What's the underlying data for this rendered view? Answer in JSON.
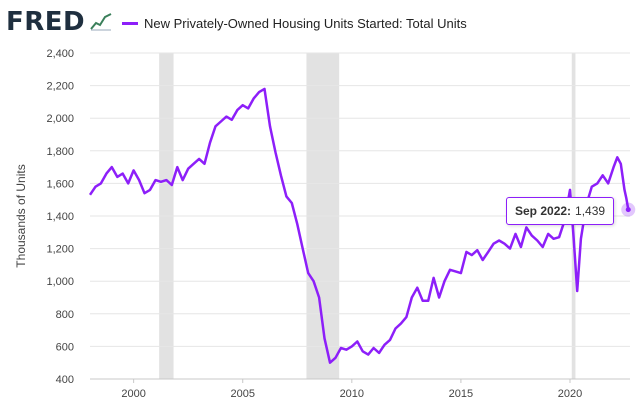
{
  "header": {
    "logo_text": "FRED",
    "logo_icon": "line-chart-icon",
    "legend_label": "New Privately-Owned Housing Units Started: Total Units"
  },
  "tooltip": {
    "date": "Sep 2022:",
    "value": "1,439"
  },
  "colors": {
    "series": "#8d1ff9",
    "recession": "#e2e2e2",
    "grid": "#e6e6e6",
    "logo": "#1f2f3f"
  },
  "chart_data": {
    "type": "line",
    "title": "",
    "xlabel": "",
    "ylabel": "Thousands of Units",
    "xlim": [
      1998.0,
      2022.75
    ],
    "ylim": [
      400,
      2400
    ],
    "yticks": [
      400,
      600,
      800,
      1000,
      1200,
      1400,
      1600,
      1800,
      2000,
      2200,
      2400
    ],
    "ytick_labels": [
      "400",
      "600",
      "800",
      "1,000",
      "1,200",
      "1,400",
      "1,600",
      "1,800",
      "2,000",
      "2,200",
      "2,400"
    ],
    "xticks": [
      2000,
      2005,
      2010,
      2015,
      2020
    ],
    "xtick_labels": [
      "2000",
      "2005",
      "2010",
      "2015",
      "2020"
    ],
    "grid": true,
    "legend": "top-left",
    "recessions": [
      [
        2001.17,
        2001.83
      ],
      [
        2007.92,
        2009.42
      ],
      [
        2020.08,
        2020.25
      ]
    ],
    "series": [
      {
        "name": "New Privately-Owned Housing Units Started: Total Units",
        "x": [
          1998.0,
          1998.25,
          1998.5,
          1998.75,
          1999.0,
          1999.25,
          1999.5,
          1999.75,
          2000.0,
          2000.25,
          2000.5,
          2000.75,
          2001.0,
          2001.25,
          2001.5,
          2001.75,
          2002.0,
          2002.25,
          2002.5,
          2002.75,
          2003.0,
          2003.25,
          2003.5,
          2003.75,
          2004.0,
          2004.25,
          2004.5,
          2004.75,
          2005.0,
          2005.25,
          2005.5,
          2005.75,
          2006.0,
          2006.25,
          2006.5,
          2006.75,
          2007.0,
          2007.25,
          2007.5,
          2007.75,
          2008.0,
          2008.25,
          2008.5,
          2008.75,
          2009.0,
          2009.25,
          2009.5,
          2009.75,
          2010.0,
          2010.25,
          2010.5,
          2010.75,
          2011.0,
          2011.25,
          2011.5,
          2011.75,
          2012.0,
          2012.25,
          2012.5,
          2012.75,
          2013.0,
          2013.25,
          2013.5,
          2013.75,
          2014.0,
          2014.25,
          2014.5,
          2014.75,
          2015.0,
          2015.25,
          2015.5,
          2015.75,
          2016.0,
          2016.25,
          2016.5,
          2016.75,
          2017.0,
          2017.25,
          2017.5,
          2017.75,
          2018.0,
          2018.25,
          2018.5,
          2018.75,
          2019.0,
          2019.25,
          2019.5,
          2019.75,
          2020.0,
          2020.17,
          2020.33,
          2020.5,
          2020.75,
          2021.0,
          2021.25,
          2021.5,
          2021.75,
          2022.0,
          2022.17,
          2022.33,
          2022.5,
          2022.58,
          2022.67
        ],
        "y": [
          1530,
          1580,
          1600,
          1660,
          1700,
          1640,
          1660,
          1600,
          1680,
          1620,
          1540,
          1560,
          1620,
          1610,
          1620,
          1590,
          1700,
          1620,
          1690,
          1720,
          1750,
          1720,
          1850,
          1950,
          1980,
          2010,
          1990,
          2050,
          2080,
          2060,
          2120,
          2160,
          2180,
          1950,
          1790,
          1650,
          1520,
          1480,
          1350,
          1200,
          1050,
          1000,
          900,
          650,
          500,
          530,
          590,
          580,
          600,
          630,
          570,
          550,
          590,
          560,
          610,
          640,
          710,
          740,
          780,
          900,
          960,
          880,
          880,
          1020,
          900,
          1000,
          1070,
          1060,
          1050,
          1180,
          1160,
          1190,
          1130,
          1180,
          1230,
          1250,
          1230,
          1200,
          1290,
          1210,
          1330,
          1280,
          1250,
          1210,
          1290,
          1260,
          1270,
          1370,
          1560,
          1260,
          940,
          1260,
          1470,
          1580,
          1600,
          1650,
          1600,
          1700,
          1760,
          1720,
          1560,
          1510,
          1439
        ]
      }
    ]
  }
}
